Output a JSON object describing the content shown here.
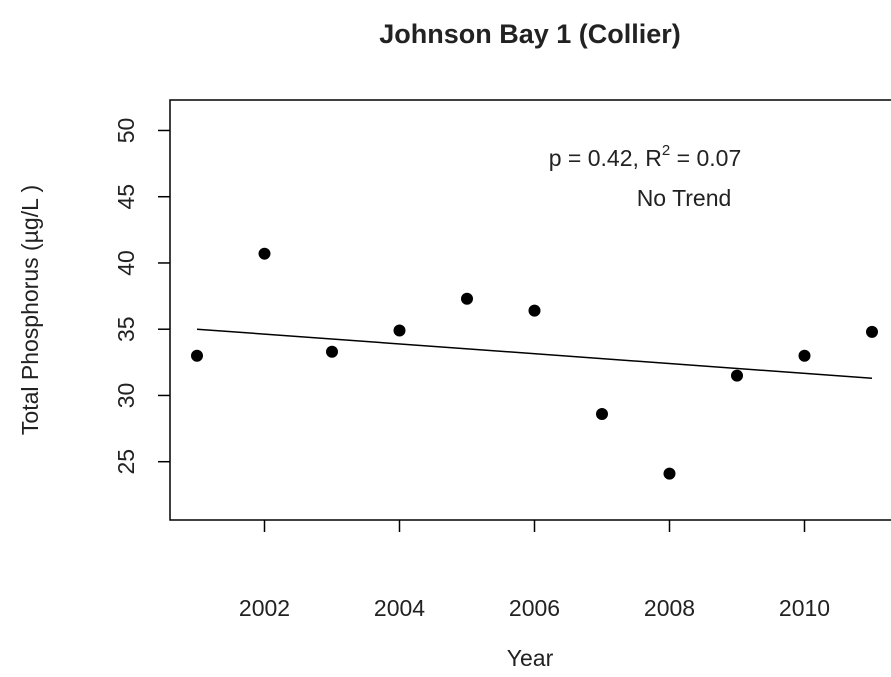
{
  "chart_data": {
    "type": "scatter",
    "title": "Johnson Bay 1 (Collier)",
    "x_label": "Year",
    "y_label": "Total Phosphorus (µg/L )",
    "annotation": {
      "stat": [
        "p = 0.42, R",
        "2",
        " = 0.07"
      ],
      "trend": "No Trend"
    },
    "series": [
      {
        "type": "scatter",
        "color": "#000000",
        "x": [
          2001,
          2002,
          2003,
          2004,
          2005,
          2006,
          2007,
          2008,
          2009,
          2010,
          2011
        ],
        "values": [
          33.0,
          40.7,
          33.3,
          34.9,
          37.3,
          36.4,
          28.6,
          24.1,
          31.5,
          33.0,
          34.8
        ]
      },
      {
        "type": "line",
        "color": "#000000",
        "x": [
          2001,
          2011
        ],
        "values": [
          35.0,
          31.3
        ]
      }
    ],
    "xlim": [
      2000.6,
      2011.4
    ],
    "xticks": [
      2002,
      2004,
      2006,
      2008,
      2010
    ],
    "ylim": [
      20.6,
      52.3
    ],
    "yticks": [
      25,
      30,
      35,
      40,
      45,
      50
    ]
  }
}
